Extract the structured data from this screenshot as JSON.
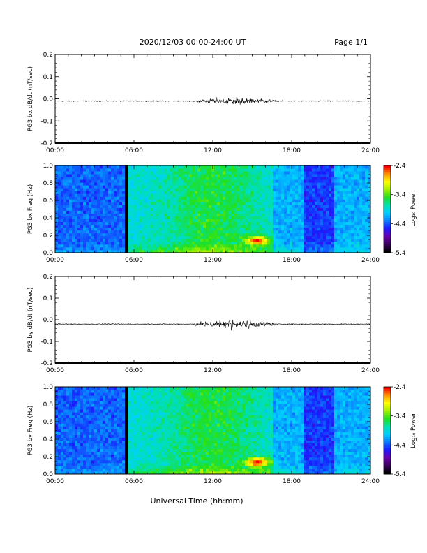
{
  "header": {
    "title": "2020/12/03  00:00-24:00 UT",
    "page": "Page 1/1"
  },
  "colors": {
    "trace": "#000000",
    "background": "#ffffff",
    "colormap": [
      "#000000",
      "#3b005f",
      "#6a00b0",
      "#1a1aff",
      "#0a7fff",
      "#00d0ff",
      "#00e0b0",
      "#20e020",
      "#a0f000",
      "#ffff00",
      "#ff9a00",
      "#ff0000"
    ]
  },
  "chart_data": [
    {
      "type": "line",
      "ylabel": "PG3 bx dB/dt (nT/sec)",
      "ylim": [
        -0.2,
        0.2
      ],
      "yticks": [
        "0.2",
        "0.1",
        "0.0",
        "-0.1",
        "-0.2"
      ],
      "xticks": [
        "00:00",
        "06:00",
        "12:00",
        "18:00",
        "24:00"
      ],
      "xlim_hours": [
        0,
        24
      ],
      "baseline": -0.01,
      "activity": [
        {
          "start_hour": 10.5,
          "end_hour": 16.8,
          "amplitude": 0.03
        }
      ]
    },
    {
      "type": "heatmap",
      "ylabel": "PG3 bx Freq (Hz)",
      "ylim": [
        0.0,
        1.0
      ],
      "yticks": [
        "1.0",
        "0.8",
        "0.6",
        "0.4",
        "0.2",
        "0.0"
      ],
      "xticks": [
        "00:00",
        "06:00",
        "12:00",
        "18:00",
        "24:00"
      ],
      "xlim_hours": [
        0,
        24
      ],
      "colorbar": {
        "label": "Log₁₀ Power",
        "ticks": [
          "-2.4",
          "-3.4",
          "-4.4",
          "-5.4"
        ],
        "range": [
          -5.4,
          -2.4
        ]
      },
      "data_gap_hour": 5.4,
      "hot_spot": {
        "hour": 15.4,
        "freq": 0.14
      }
    },
    {
      "type": "line",
      "ylabel": "PG3 by dB/dt (nT/sec)",
      "ylim": [
        -0.2,
        0.2
      ],
      "yticks": [
        "0.2",
        "0.1",
        "0.0",
        "-0.1",
        "-0.2"
      ],
      "xticks": [
        "00:00",
        "06:00",
        "12:00",
        "18:00",
        "24:00"
      ],
      "xlim_hours": [
        0,
        24
      ],
      "baseline": -0.02,
      "activity": [
        {
          "start_hour": 10.5,
          "end_hour": 16.8,
          "amplitude": 0.035
        }
      ]
    },
    {
      "type": "heatmap",
      "ylabel": "PG3 by Freq (Hz)",
      "ylim": [
        0.0,
        1.0
      ],
      "yticks": [
        "1.0",
        "0.8",
        "0.6",
        "0.4",
        "0.2",
        "0.0"
      ],
      "xticks": [
        "00:00",
        "06:00",
        "12:00",
        "18:00",
        "24:00"
      ],
      "xlim_hours": [
        0,
        24
      ],
      "xlabel": "Universal Time (hh:mm)",
      "colorbar": {
        "label": "Log₁₀ Power",
        "ticks": [
          "-2.4",
          "-3.4",
          "-4.4",
          "-5.4"
        ],
        "range": [
          -5.4,
          -2.4
        ]
      },
      "data_gap_hour": 5.4,
      "hot_spot": {
        "hour": 15.4,
        "freq": 0.14
      }
    }
  ]
}
